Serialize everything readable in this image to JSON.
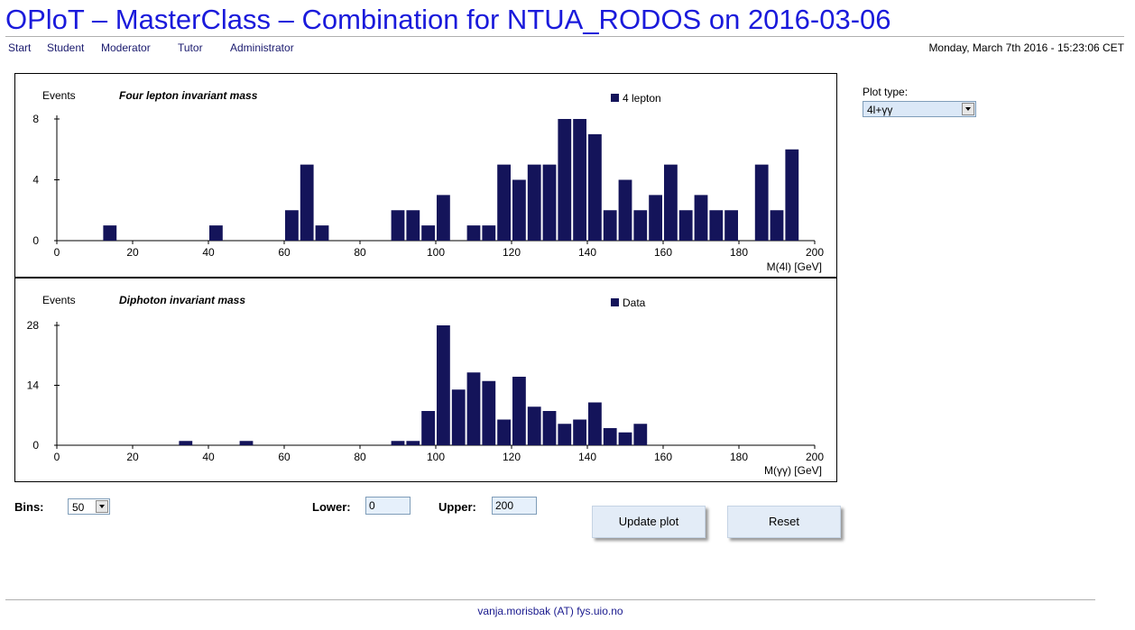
{
  "page": {
    "title": "OPloT – MasterClass – Combination for NTUA_RODOS on 2016-03-06"
  },
  "nav": {
    "items": [
      "Start",
      "Student",
      "Moderator",
      "Tutor",
      "Administrator"
    ]
  },
  "datetime": "Monday, March 7th 2016 - 15:23:06 CET",
  "controls": {
    "plot_type_label": "Plot type:",
    "plot_type_value": "4l+γγ",
    "bins_label": "Bins:",
    "bins_value": "50",
    "lower_label": "Lower:",
    "lower_value": "0",
    "upper_label": "Upper:",
    "upper_value": "200",
    "update_button": "Update plot",
    "reset_button": "Reset"
  },
  "footer": {
    "email": "vanja.morisbak (AT) fys.uio.no"
  },
  "colors": {
    "bar": "#14145a",
    "title": "#1a1adb"
  },
  "chart_data": [
    {
      "type": "bar",
      "title": "Four lepton invariant mass",
      "ylabel": "Events",
      "xlabel": "M(4l) [GeV]",
      "legend": "4 lepton",
      "legend_position": "top-right",
      "xlim": [
        0,
        200
      ],
      "ylim": [
        0,
        8
      ],
      "bin_width": 4,
      "xticks": [
        0,
        20,
        40,
        60,
        80,
        100,
        120,
        140,
        160,
        180,
        200
      ],
      "yticks": [
        0,
        4,
        8
      ],
      "values": [
        0,
        0,
        0,
        1,
        0,
        0,
        0,
        0,
        0,
        0,
        1,
        0,
        0,
        0,
        0,
        2,
        5,
        1,
        0,
        0,
        0,
        0,
        2,
        2,
        1,
        3,
        0,
        1,
        1,
        5,
        4,
        5,
        5,
        8,
        8,
        7,
        2,
        4,
        2,
        3,
        5,
        2,
        3,
        2,
        2,
        0,
        5,
        2,
        6,
        0
      ]
    },
    {
      "type": "bar",
      "title": "Diphoton invariant mass",
      "ylabel": "Events",
      "xlabel": "M(γγ) [GeV]",
      "legend": "Data",
      "legend_position": "top-right",
      "xlim": [
        0,
        200
      ],
      "ylim": [
        0,
        28
      ],
      "bin_width": 4,
      "xticks": [
        0,
        20,
        40,
        60,
        80,
        100,
        120,
        140,
        160,
        180,
        200
      ],
      "yticks": [
        0,
        14,
        28
      ],
      "values": [
        0,
        0,
        0,
        0,
        0,
        0,
        0,
        0,
        1,
        0,
        0,
        0,
        1,
        0,
        0,
        0,
        0,
        0,
        0,
        0,
        0,
        0,
        1,
        1,
        8,
        28,
        13,
        17,
        15,
        6,
        16,
        9,
        8,
        5,
        6,
        10,
        4,
        3,
        5,
        0,
        0,
        0,
        0,
        0,
        0,
        0,
        0,
        0,
        0,
        0
      ]
    }
  ]
}
